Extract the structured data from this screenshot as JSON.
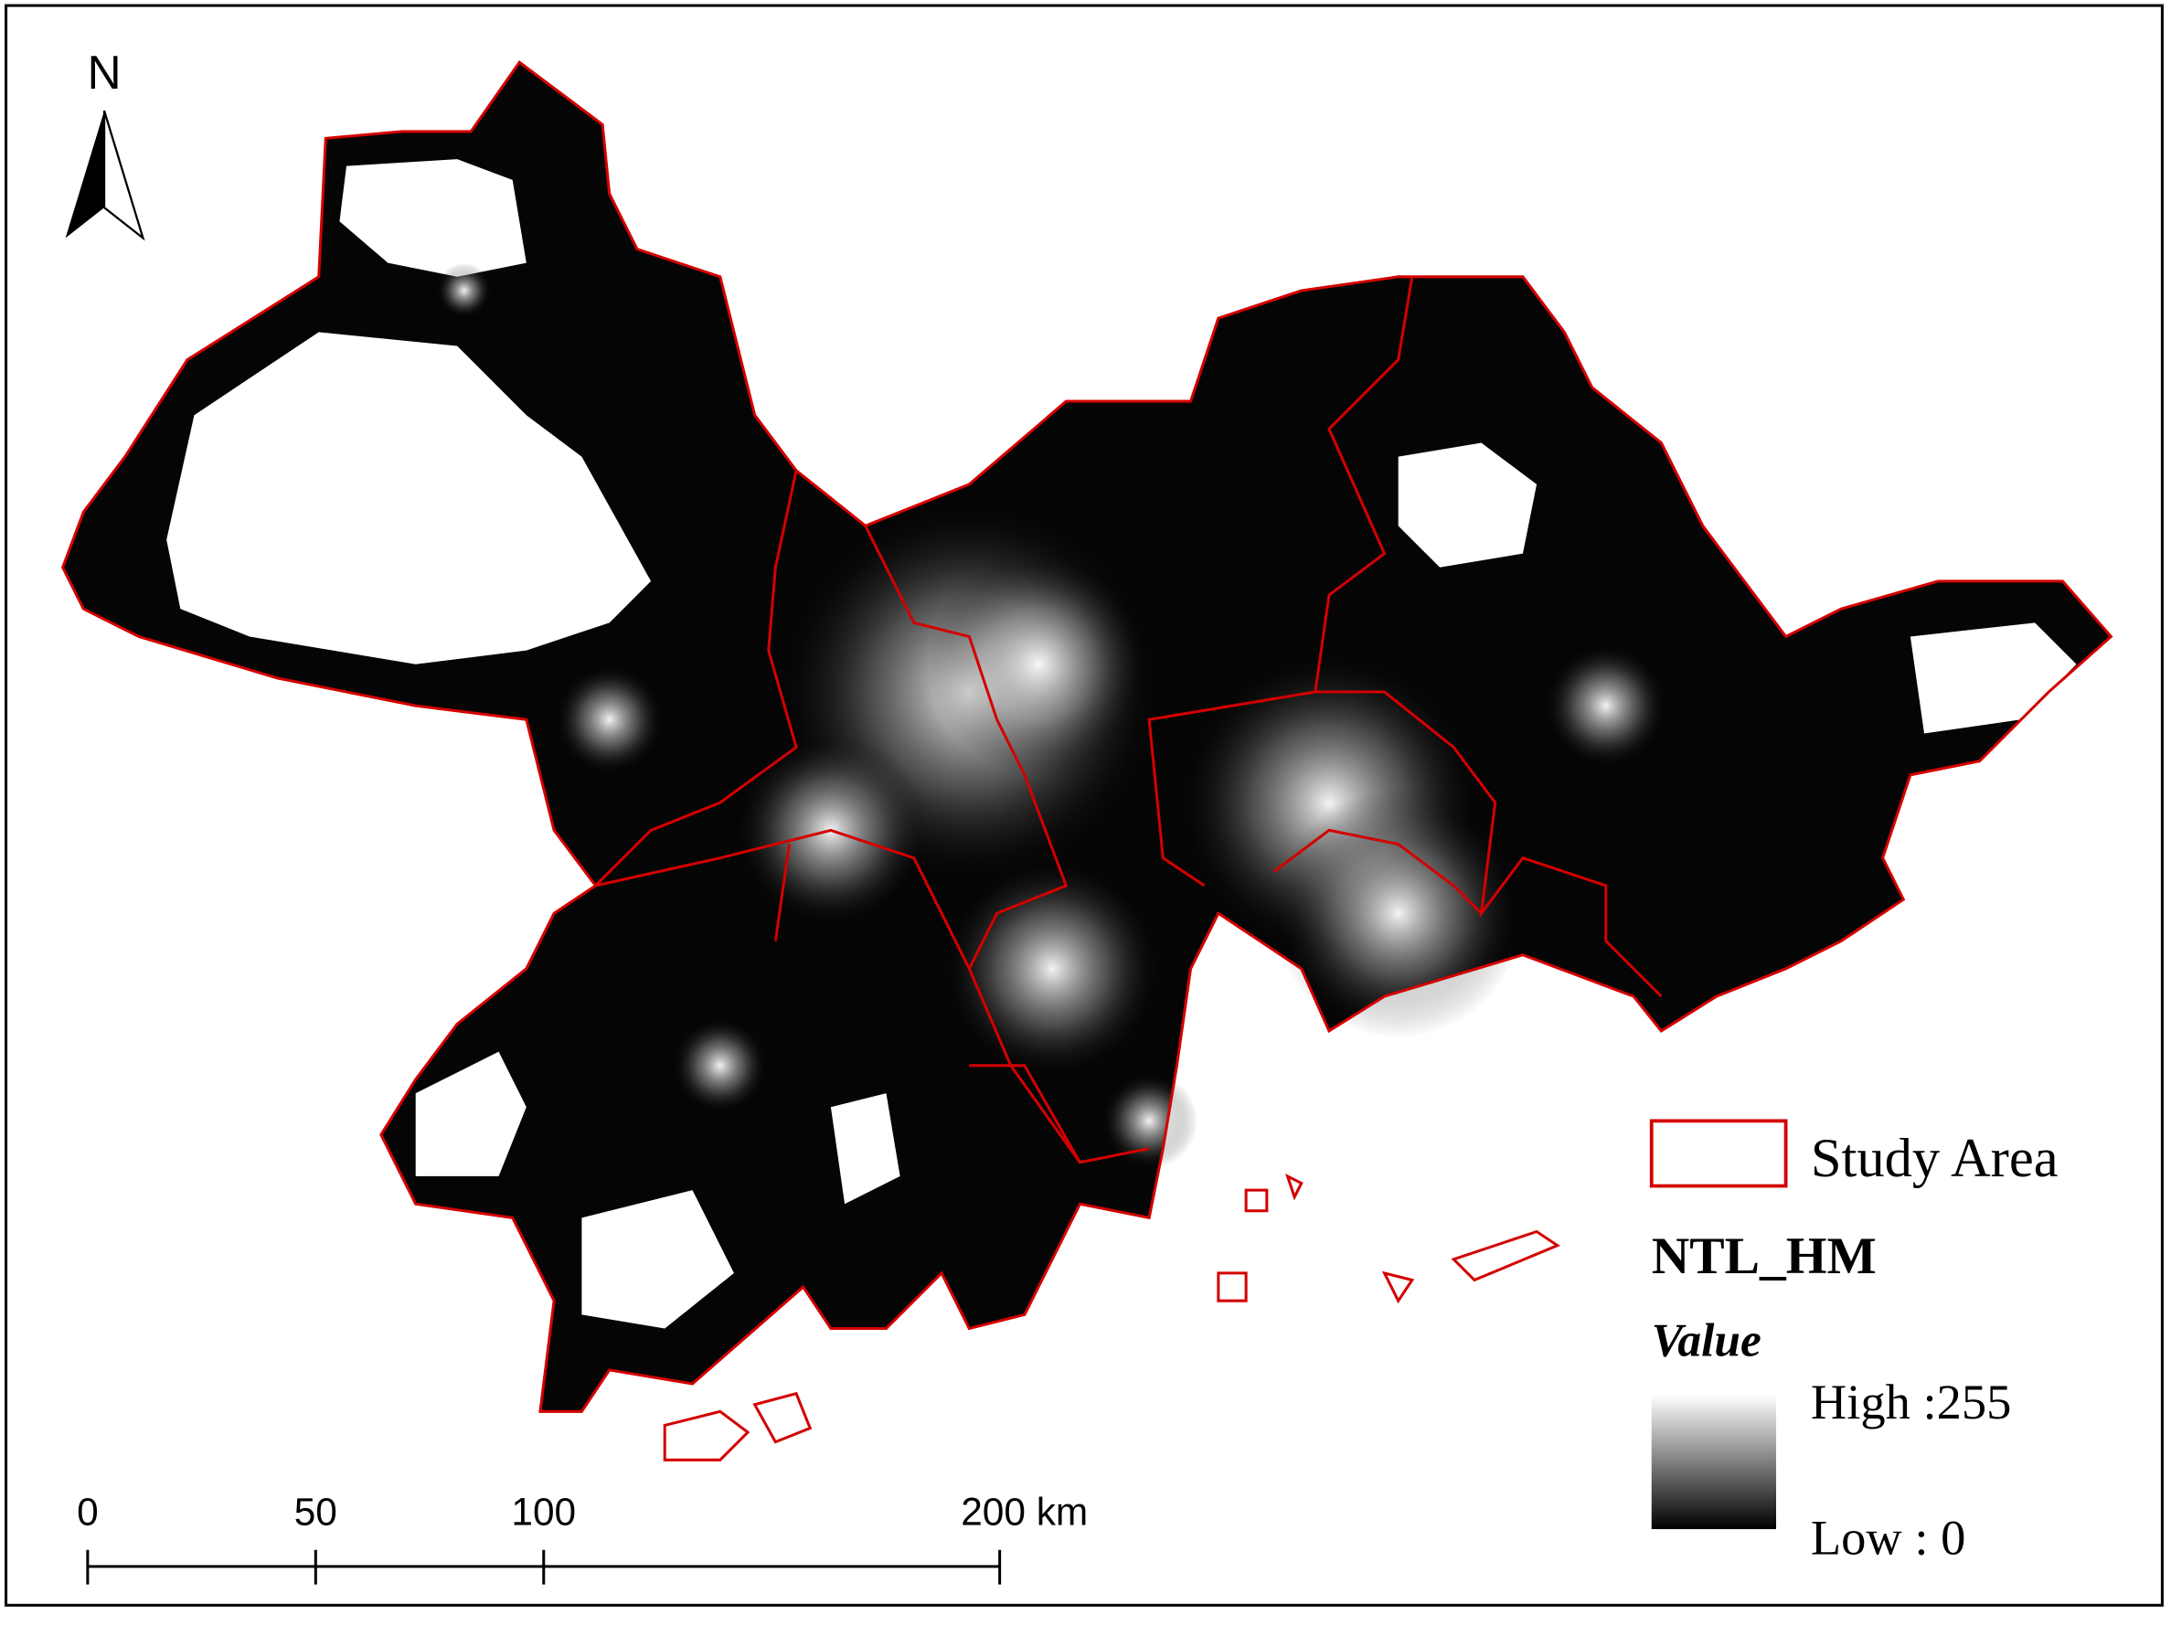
{
  "north_arrow": {
    "label": "N"
  },
  "scale_bar": {
    "ticks": [
      0,
      50,
      100,
      {
        "value": 200,
        "label": "200 km"
      }
    ]
  },
  "legend": {
    "boundary_label": "Study Area",
    "layer_title": "NTL_HM",
    "field_label": "Value",
    "high_label": "High :255",
    "low_label": "Low : 0"
  }
}
